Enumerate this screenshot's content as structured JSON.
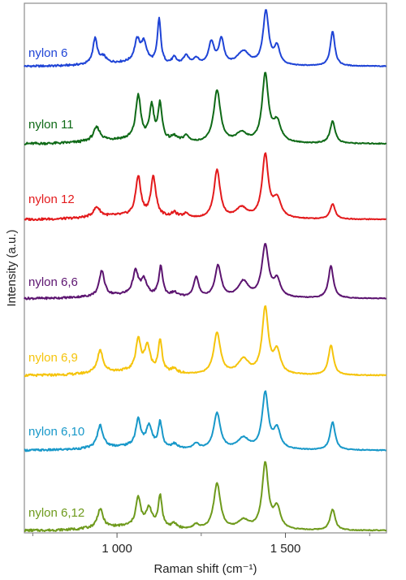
{
  "chart_data": {
    "type": "line",
    "title": "",
    "xlabel": "Raman shift (cm⁻¹)",
    "ylabel": "Intensity (a.u.)",
    "xlim": [
      725,
      1800
    ],
    "xticks": [
      1000,
      1500
    ],
    "xtick_labels": [
      "1 000",
      "1 500"
    ],
    "x_minor_ticks": [
      750,
      1250,
      1750
    ],
    "grid": false,
    "y_ticks_shown": false,
    "legend": "none (each spectrum labelled on the left)",
    "series": [
      {
        "name": "nylon 6",
        "color": "#1f44d6",
        "baseline": 0.03,
        "peaks": [
          [
            935,
            0.4,
            8
          ],
          [
            960,
            0.1,
            10
          ],
          [
            1060,
            0.34,
            10
          ],
          [
            1080,
            0.3,
            10
          ],
          [
            1125,
            0.7,
            6
          ],
          [
            1170,
            0.1,
            8
          ],
          [
            1205,
            0.14,
            10
          ],
          [
            1235,
            0.1,
            10
          ],
          [
            1280,
            0.36,
            10
          ],
          [
            1310,
            0.4,
            9
          ],
          [
            1375,
            0.22,
            22
          ],
          [
            1442,
            0.85,
            10
          ],
          [
            1475,
            0.28,
            10
          ],
          [
            1640,
            0.55,
            8
          ]
        ]
      },
      {
        "name": "nylon 11",
        "color": "#0f6a17",
        "baseline": 0.02,
        "peaks": [
          [
            940,
            0.17,
            12
          ],
          [
            1063,
            0.55,
            9
          ],
          [
            1103,
            0.42,
            8
          ],
          [
            1128,
            0.45,
            7
          ],
          [
            1170,
            0.06,
            10
          ],
          [
            1205,
            0.08,
            10
          ],
          [
            1297,
            0.66,
            12
          ],
          [
            1370,
            0.12,
            20
          ],
          [
            1440,
            0.85,
            11
          ],
          [
            1475,
            0.25,
            14
          ],
          [
            1640,
            0.28,
            9
          ]
        ]
      },
      {
        "name": "nylon 12",
        "color": "#e31a1c",
        "baseline": 0.02,
        "peaks": [
          [
            940,
            0.13,
            12
          ],
          [
            1063,
            0.52,
            9
          ],
          [
            1108,
            0.52,
            9
          ],
          [
            1170,
            0.06,
            10
          ],
          [
            1205,
            0.06,
            10
          ],
          [
            1297,
            0.65,
            11
          ],
          [
            1370,
            0.14,
            20
          ],
          [
            1440,
            0.84,
            11
          ],
          [
            1475,
            0.25,
            14
          ],
          [
            1640,
            0.2,
            9
          ]
        ]
      },
      {
        "name": "nylon 6,6",
        "color": "#5c1470",
        "baseline": 0.03,
        "peaks": [
          [
            955,
            0.38,
            9
          ],
          [
            1055,
            0.35,
            10
          ],
          [
            1080,
            0.22,
            10
          ],
          [
            1130,
            0.44,
            7
          ],
          [
            1170,
            0.06,
            10
          ],
          [
            1235,
            0.3,
            9
          ],
          [
            1300,
            0.48,
            11
          ],
          [
            1375,
            0.24,
            18
          ],
          [
            1440,
            0.78,
            12
          ],
          [
            1475,
            0.25,
            12
          ],
          [
            1635,
            0.48,
            9
          ]
        ]
      },
      {
        "name": "nylon 6,9",
        "color": "#f5c40c",
        "baseline": 0.03,
        "peaks": [
          [
            950,
            0.3,
            10
          ],
          [
            1063,
            0.42,
            9
          ],
          [
            1090,
            0.34,
            10
          ],
          [
            1128,
            0.42,
            7
          ],
          [
            1170,
            0.06,
            10
          ],
          [
            1297,
            0.56,
            12
          ],
          [
            1375,
            0.2,
            20
          ],
          [
            1440,
            0.88,
            11
          ],
          [
            1475,
            0.3,
            12
          ],
          [
            1635,
            0.4,
            9
          ]
        ]
      },
      {
        "name": "nylon 6,10",
        "color": "#1898c9",
        "baseline": 0.03,
        "peaks": [
          [
            950,
            0.32,
            10
          ],
          [
            1063,
            0.38,
            9
          ],
          [
            1095,
            0.3,
            10
          ],
          [
            1128,
            0.36,
            7
          ],
          [
            1170,
            0.06,
            10
          ],
          [
            1235,
            0.08,
            10
          ],
          [
            1297,
            0.52,
            12
          ],
          [
            1375,
            0.16,
            20
          ],
          [
            1440,
            0.8,
            11
          ],
          [
            1475,
            0.28,
            12
          ],
          [
            1640,
            0.4,
            9
          ]
        ]
      },
      {
        "name": "nylon 6,12",
        "color": "#6e9a1c",
        "baseline": 0.02,
        "peaks": [
          [
            950,
            0.25,
            10
          ],
          [
            1063,
            0.38,
            9
          ],
          [
            1095,
            0.25,
            10
          ],
          [
            1128,
            0.42,
            7
          ],
          [
            1170,
            0.06,
            10
          ],
          [
            1235,
            0.06,
            10
          ],
          [
            1297,
            0.62,
            12
          ],
          [
            1375,
            0.12,
            20
          ],
          [
            1440,
            0.88,
            11
          ],
          [
            1475,
            0.28,
            12
          ],
          [
            1640,
            0.28,
            9
          ]
        ]
      }
    ]
  }
}
